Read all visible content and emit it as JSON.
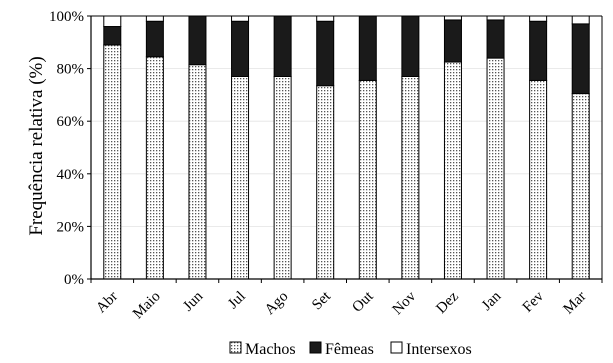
{
  "chart_data": {
    "type": "bar",
    "stacked": true,
    "title": "",
    "xlabel": "",
    "ylabel": "Frequência relativa (%)",
    "ylim": [
      0,
      100
    ],
    "y_ticks": [
      "0%",
      "20%",
      "40%",
      "60%",
      "80%",
      "100%"
    ],
    "categories": [
      "Abr",
      "Maio",
      "Jun",
      "Jul",
      "Ago",
      "Set",
      "Out",
      "Nov",
      "Dez",
      "Jan",
      "Fev",
      "Mar"
    ],
    "series": [
      {
        "name": "Machos",
        "pattern": "dotted",
        "color": "#ffffff",
        "values": [
          89,
          84.5,
          81.5,
          77,
          77,
          73.5,
          75.5,
          77,
          82.5,
          84,
          75.5,
          70.5
        ]
      },
      {
        "name": "Fêmeas",
        "pattern": "solid",
        "color": "#1a1a1a",
        "values": [
          7,
          13.5,
          18.5,
          21,
          23,
          24.5,
          24.5,
          23,
          16,
          14.5,
          22.5,
          26.5
        ]
      },
      {
        "name": "Intersexos",
        "pattern": "none",
        "color": "#ffffff",
        "values": [
          4,
          2,
          0,
          2,
          0,
          2,
          0,
          0,
          1.5,
          1.5,
          2,
          3
        ]
      }
    ],
    "grid": true,
    "legend_position": "bottom"
  }
}
